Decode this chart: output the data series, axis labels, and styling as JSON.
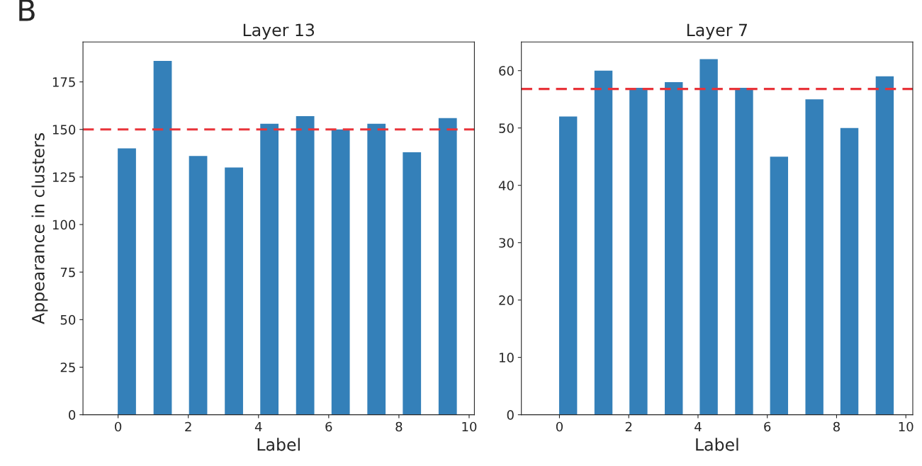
{
  "chart_data": [
    {
      "type": "bar",
      "title": "Layer 13",
      "xlabel": "Label",
      "ylabel": "Appearance in clusters",
      "annotations": [
        "B"
      ],
      "x": [
        0.25,
        1.27,
        2.28,
        3.3,
        4.31,
        5.33,
        6.34,
        7.36,
        8.37,
        9.39
      ],
      "values": [
        140,
        186,
        136,
        130,
        153,
        157,
        150,
        153,
        138,
        156
      ],
      "color": "#3480b9",
      "xlim": [
        -1,
        10.15
      ],
      "xticks": [
        0,
        2,
        4,
        6,
        8,
        10
      ],
      "ylim": [
        0,
        196
      ],
      "yticks": [
        0,
        25,
        50,
        75,
        100,
        125,
        150,
        175
      ],
      "ref_lines": [
        {
          "axis": "y",
          "value": 150,
          "color": "#e8343a",
          "line_style": "dashed"
        }
      ],
      "grid": false,
      "legend": false
    },
    {
      "type": "bar",
      "title": "Layer 7",
      "xlabel": "Label",
      "x": [
        0.25,
        1.27,
        2.28,
        3.3,
        4.31,
        5.33,
        6.34,
        7.36,
        8.37,
        9.39
      ],
      "values": [
        52,
        60,
        57,
        58,
        62,
        57,
        45,
        55,
        50,
        59
      ],
      "color": "#3480b9",
      "xlim": [
        -1.1,
        10.2
      ],
      "xticks": [
        0,
        2,
        4,
        6,
        8,
        10
      ],
      "ylim": [
        0,
        65
      ],
      "yticks": [
        0,
        10,
        20,
        30,
        40,
        50,
        60
      ],
      "ref_lines": [
        {
          "axis": "y",
          "value": 56.8,
          "color": "#e8343a",
          "line_style": "dashed"
        }
      ],
      "grid": false,
      "legend": false
    }
  ]
}
